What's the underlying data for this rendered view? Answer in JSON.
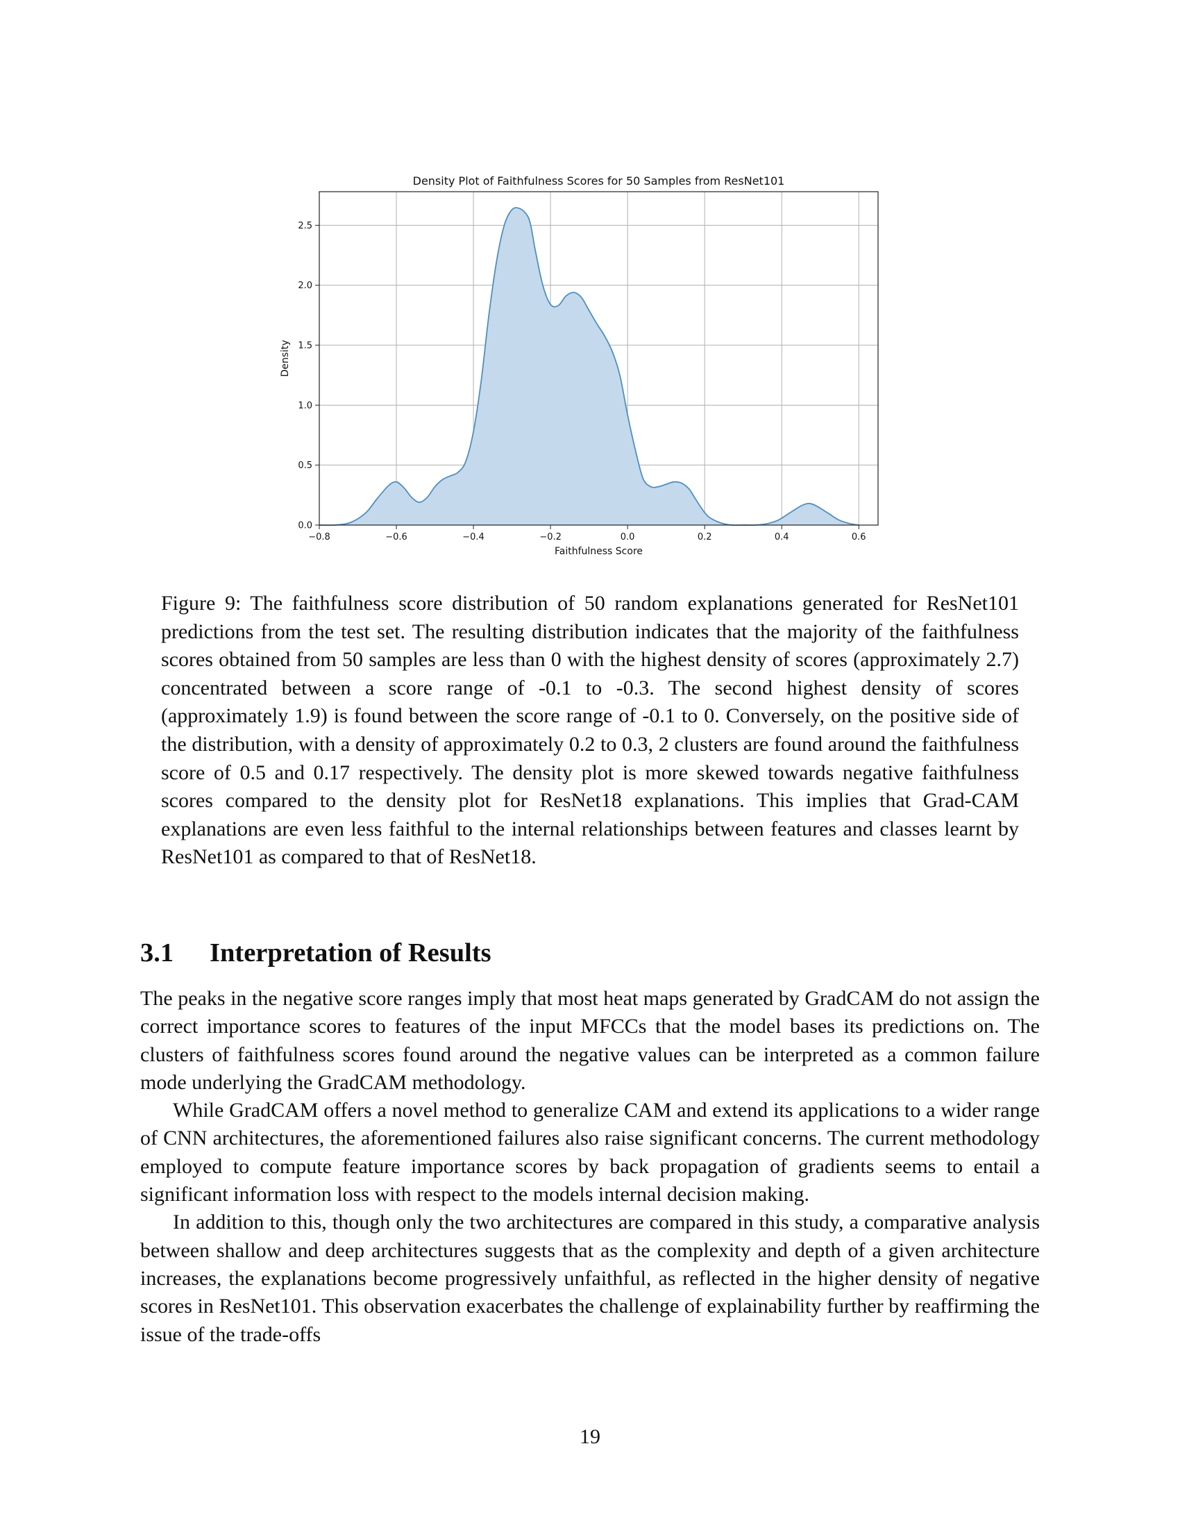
{
  "chart_data": {
    "type": "area",
    "title": "Density Plot of Faithfulness Scores for 50 Samples from ResNet101",
    "xlabel": "Faithfulness Score",
    "ylabel": "Density",
    "xlim": [
      -0.8,
      0.65
    ],
    "ylim": [
      0,
      2.78
    ],
    "xticks": [
      -0.8,
      -0.6,
      -0.4,
      -0.2,
      0.0,
      0.2,
      0.4,
      0.6
    ],
    "xtick_labels": [
      "−0.8",
      "−0.6",
      "−0.4",
      "−0.2",
      "0.0",
      "0.2",
      "0.4",
      "0.6"
    ],
    "yticks": [
      0.0,
      0.5,
      1.0,
      1.5,
      2.0,
      2.5
    ],
    "ytick_labels": [
      "0.0",
      "0.5",
      "1.0",
      "1.5",
      "2.0",
      "2.5"
    ],
    "grid": true,
    "fill_color": "#c5d9ec",
    "line_color": "#4f8fc0",
    "x": [
      -0.8,
      -0.76,
      -0.72,
      -0.68,
      -0.65,
      -0.62,
      -0.6,
      -0.58,
      -0.56,
      -0.54,
      -0.52,
      -0.5,
      -0.48,
      -0.46,
      -0.44,
      -0.42,
      -0.4,
      -0.38,
      -0.36,
      -0.34,
      -0.32,
      -0.3,
      -0.28,
      -0.26,
      -0.25,
      -0.24,
      -0.22,
      -0.2,
      -0.18,
      -0.16,
      -0.14,
      -0.12,
      -0.1,
      -0.08,
      -0.06,
      -0.04,
      -0.02,
      0.0,
      0.02,
      0.04,
      0.06,
      0.08,
      0.1,
      0.12,
      0.14,
      0.16,
      0.17,
      0.19,
      0.21,
      0.24,
      0.27,
      0.3,
      0.33,
      0.36,
      0.39,
      0.42,
      0.45,
      0.47,
      0.49,
      0.52,
      0.55,
      0.58,
      0.6
    ],
    "y": [
      0.0,
      0.0,
      0.02,
      0.1,
      0.22,
      0.33,
      0.36,
      0.31,
      0.23,
      0.19,
      0.23,
      0.32,
      0.38,
      0.41,
      0.44,
      0.53,
      0.78,
      1.2,
      1.75,
      2.2,
      2.5,
      2.63,
      2.64,
      2.58,
      2.48,
      2.3,
      2.0,
      1.84,
      1.83,
      1.91,
      1.94,
      1.9,
      1.79,
      1.68,
      1.58,
      1.45,
      1.25,
      0.92,
      0.63,
      0.39,
      0.32,
      0.32,
      0.34,
      0.36,
      0.35,
      0.3,
      0.25,
      0.15,
      0.07,
      0.02,
      0.0,
      0.0,
      0.0,
      0.01,
      0.04,
      0.1,
      0.16,
      0.18,
      0.16,
      0.1,
      0.04,
      0.01,
      0.0
    ]
  },
  "caption": "Figure 9: The faithfulness score distribution of 50 random explanations generated for ResNet101 predictions from the test set. The resulting distribution indicates that the majority of the faithfulness scores obtained from 50 samples are less than 0 with the highest density of scores (approximately 2.7) concentrated between a score range of -0.1 to -0.3. The second highest density of scores (approximately 1.9) is found between the score range of -0.1 to 0. Conversely, on the positive side of the distribution, with a density of approximately 0.2 to 0.3, 2 clusters are found around the faithfulness score of 0.5 and 0.17 respectively. The density plot is more skewed towards negative faithfulness scores compared to the density plot for ResNet18 explanations. This implies that Grad-CAM explanations are even less faithful to the internal relationships between features and classes learnt by ResNet101 as compared to that of ResNet18.",
  "section": {
    "number": "3.1",
    "title": "Interpretation of Results"
  },
  "paragraphs": [
    "The peaks in the negative score ranges imply that most heat maps generated by GradCAM do not assign the correct importance scores to features of the input MFCCs that the model bases its predictions on. The clusters of faithfulness scores found around the negative values can be interpreted as a common failure mode underlying the GradCAM methodology.",
    "While GradCAM offers a novel method to generalize CAM and extend its applications to a wider range of CNN architectures, the aforementioned failures also raise significant concerns. The current methodology employed to compute feature importance scores by back propagation of gradients seems to entail a significant information loss with respect to the models internal decision making.",
    "In addition to this, though only the two architectures are compared in this study, a comparative analysis between shallow and deep architectures suggests that as the complexity and depth of a given architecture increases, the explanations become progressively unfaithful, as reflected in the higher density of negative scores in ResNet101. This observation exacerbates the challenge of explainability further by reaffirming the issue of the trade-offs"
  ],
  "page_number": "19"
}
